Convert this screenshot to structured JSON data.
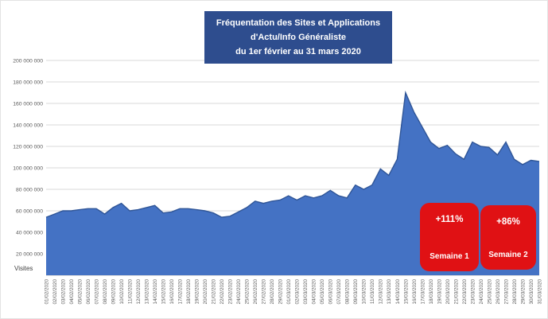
{
  "chart_data": {
    "type": "area",
    "title": [
      "Fréquentation des Sites et Applications",
      "d'Actu/Info Généraliste",
      "du 1er février au 31 mars 2020"
    ],
    "ylabel": "Visites",
    "ylim": [
      0,
      200000000
    ],
    "y_tick_step": 20000000,
    "y_tick_labels": [
      "20 000 000",
      "40 000 000",
      "60 000 000",
      "80 000 000",
      "100 000 000",
      "120 000 000",
      "140 000 000",
      "160 000 000",
      "180 000 000",
      "200 000 000"
    ],
    "grid": "on",
    "legend": "none",
    "categories": [
      "01/02/2020",
      "02/02/2020",
      "03/02/2020",
      "04/02/2020",
      "05/02/2020",
      "06/02/2020",
      "07/02/2020",
      "08/02/2020",
      "09/02/2020",
      "10/02/2020",
      "11/02/2020",
      "12/02/2020",
      "13/02/2020",
      "14/02/2020",
      "15/02/2020",
      "16/02/2020",
      "17/02/2020",
      "18/02/2020",
      "19/02/2020",
      "20/02/2020",
      "21/02/2020",
      "22/02/2020",
      "23/02/2020",
      "24/02/2020",
      "25/02/2020",
      "26/02/2020",
      "27/02/2020",
      "28/02/2020",
      "29/02/2020",
      "01/03/2020",
      "02/03/2020",
      "03/03/2020",
      "04/03/2020",
      "05/03/2020",
      "06/03/2020",
      "07/03/2020",
      "08/03/2020",
      "09/03/2020",
      "10/03/2020",
      "11/03/2020",
      "12/03/2020",
      "13/03/2020",
      "14/03/2020",
      "15/03/2020",
      "16/03/2020",
      "17/03/2020",
      "18/03/2020",
      "19/03/2020",
      "20/03/2020",
      "21/03/2020",
      "22/03/2020",
      "23/03/2020",
      "24/03/2020",
      "25/03/2020",
      "26/03/2020",
      "27/03/2020",
      "28/03/2020",
      "29/03/2020",
      "30/03/2020",
      "31/03/2020"
    ],
    "values": [
      54000000,
      57000000,
      60000000,
      60000000,
      61000000,
      62000000,
      62000000,
      57000000,
      63000000,
      67000000,
      60000000,
      61000000,
      63000000,
      65000000,
      58000000,
      59000000,
      62000000,
      62000000,
      61000000,
      60000000,
      58000000,
      54000000,
      55000000,
      59000000,
      63000000,
      69000000,
      67000000,
      69000000,
      70000000,
      74000000,
      70000000,
      74000000,
      72000000,
      74000000,
      79000000,
      74000000,
      72000000,
      84000000,
      80000000,
      84000000,
      99000000,
      93000000,
      108000000,
      170000000,
      152000000,
      138000000,
      124000000,
      118000000,
      121000000,
      113000000,
      108000000,
      124000000,
      120000000,
      119000000,
      112000000,
      124000000,
      108000000,
      103000000,
      107000000,
      106000000
    ],
    "annotations": [
      {
        "value": "+111%",
        "label": "Semaine 1"
      },
      {
        "value": "+86%",
        "label": "Semaine 2"
      }
    ],
    "colors": {
      "title_bg": "#2E4D8E",
      "area": "#4472C4",
      "area_stroke": "#2F5597",
      "badge": "#E01114",
      "grid": "#D9D9D9",
      "axis_line": "#BFBFBF",
      "axis_text": "#595959"
    }
  }
}
